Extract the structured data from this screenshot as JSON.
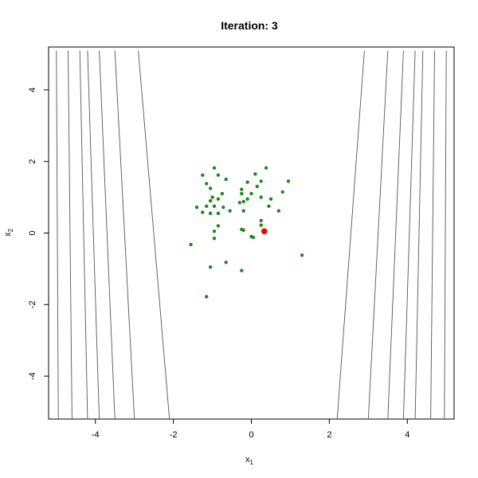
{
  "chart_data": {
    "type": "scatter",
    "title": "Iteration: 3",
    "xlabel": {
      "base": "x",
      "sub": "1"
    },
    "ylabel": {
      "base": "x",
      "sub": "2"
    },
    "xlim": [
      -5.2,
      5.2
    ],
    "ylim": [
      -5.2,
      5.2
    ],
    "xticks": [
      -4,
      -2,
      0,
      2,
      4
    ],
    "yticks": [
      -4,
      -2,
      0,
      2,
      4
    ],
    "colors": {
      "points": "#1a8a1a",
      "best": "#ff0000",
      "contour": "#555555",
      "frame": "#000000"
    },
    "series": [
      {
        "values": [
          [
            -1.25,
            1.62
          ],
          [
            -0.95,
            1.82
          ],
          [
            -0.85,
            1.62
          ],
          [
            -1.15,
            1.38
          ],
          [
            -1.05,
            1.25
          ],
          [
            -0.75,
            1.1
          ],
          [
            -0.65,
            1.5
          ],
          [
            -0.25,
            1.22
          ],
          [
            -0.1,
            1.42
          ],
          [
            0.15,
            1.3
          ],
          [
            0.25,
            1.45
          ],
          [
            0.38,
            1.82
          ],
          [
            0.1,
            1.65
          ],
          [
            -0.25,
            1.1
          ],
          [
            -0.1,
            0.95
          ],
          [
            0.0,
            1.1
          ],
          [
            0.25,
            1.0
          ],
          [
            0.5,
            0.95
          ],
          [
            0.8,
            1.15
          ],
          [
            0.95,
            1.45
          ],
          [
            -1.0,
            1.0
          ],
          [
            -1.05,
            0.9
          ],
          [
            -0.85,
            0.95
          ],
          [
            -0.95,
            0.75
          ],
          [
            -1.15,
            0.75
          ],
          [
            -1.4,
            0.72
          ],
          [
            -0.72,
            0.72
          ],
          [
            -0.3,
            0.85
          ],
          [
            -0.2,
            0.88
          ],
          [
            0.45,
            0.75
          ],
          [
            0.7,
            0.62
          ],
          [
            -1.25,
            0.58
          ],
          [
            -1.05,
            0.55
          ],
          [
            -0.85,
            0.55
          ],
          [
            -0.55,
            0.62
          ],
          [
            -0.2,
            0.62
          ],
          [
            0.25,
            0.35
          ],
          [
            0.25,
            0.22
          ],
          [
            -0.85,
            0.2
          ],
          [
            -0.95,
            0.05
          ],
          [
            -0.95,
            -0.15
          ],
          [
            -0.25,
            0.1
          ],
          [
            -0.2,
            0.08
          ],
          [
            0.0,
            -0.1
          ],
          [
            0.05,
            -0.12
          ],
          [
            -1.55,
            -0.32
          ],
          [
            -0.65,
            -0.82
          ],
          [
            -1.05,
            -0.95
          ],
          [
            -0.25,
            -1.05
          ],
          [
            1.3,
            -0.62
          ],
          [
            -1.15,
            -1.78
          ]
        ]
      }
    ],
    "best_point": [
      0.33,
      0.05
    ],
    "contours_left": [
      {
        "top": [
          -5.0,
          5.1
        ],
        "bottom": [
          -4.95,
          -5.2
        ]
      },
      {
        "top": [
          -4.7,
          5.1
        ],
        "bottom": [
          -4.6,
          -5.2
        ]
      },
      {
        "top": [
          -4.4,
          5.1
        ],
        "bottom": [
          -4.2,
          -5.2
        ]
      },
      {
        "top": [
          -4.2,
          5.1
        ],
        "bottom": [
          -3.9,
          -5.2
        ]
      },
      {
        "top": [
          -3.9,
          5.1
        ],
        "bottom": [
          -3.5,
          -5.2
        ]
      },
      {
        "top": [
          -3.5,
          5.1
        ],
        "bottom": [
          -3.0,
          -5.2
        ]
      },
      {
        "top": [
          -2.9,
          5.1
        ],
        "bottom": [
          -2.1,
          -5.2
        ]
      }
    ],
    "contours_right": [
      {
        "top": [
          5.0,
          5.1
        ],
        "bottom": [
          4.95,
          -5.2
        ]
      },
      {
        "top": [
          4.7,
          5.1
        ],
        "bottom": [
          4.6,
          -5.2
        ]
      },
      {
        "top": [
          4.4,
          5.1
        ],
        "bottom": [
          4.2,
          -5.2
        ]
      },
      {
        "top": [
          4.2,
          5.1
        ],
        "bottom": [
          3.9,
          -5.2
        ]
      },
      {
        "top": [
          3.9,
          5.1
        ],
        "bottom": [
          3.5,
          -5.2
        ]
      },
      {
        "top": [
          3.5,
          5.1
        ],
        "bottom": [
          3.0,
          -5.2
        ]
      },
      {
        "top": [
          2.9,
          5.1
        ],
        "bottom": [
          2.2,
          -5.2
        ]
      }
    ]
  }
}
